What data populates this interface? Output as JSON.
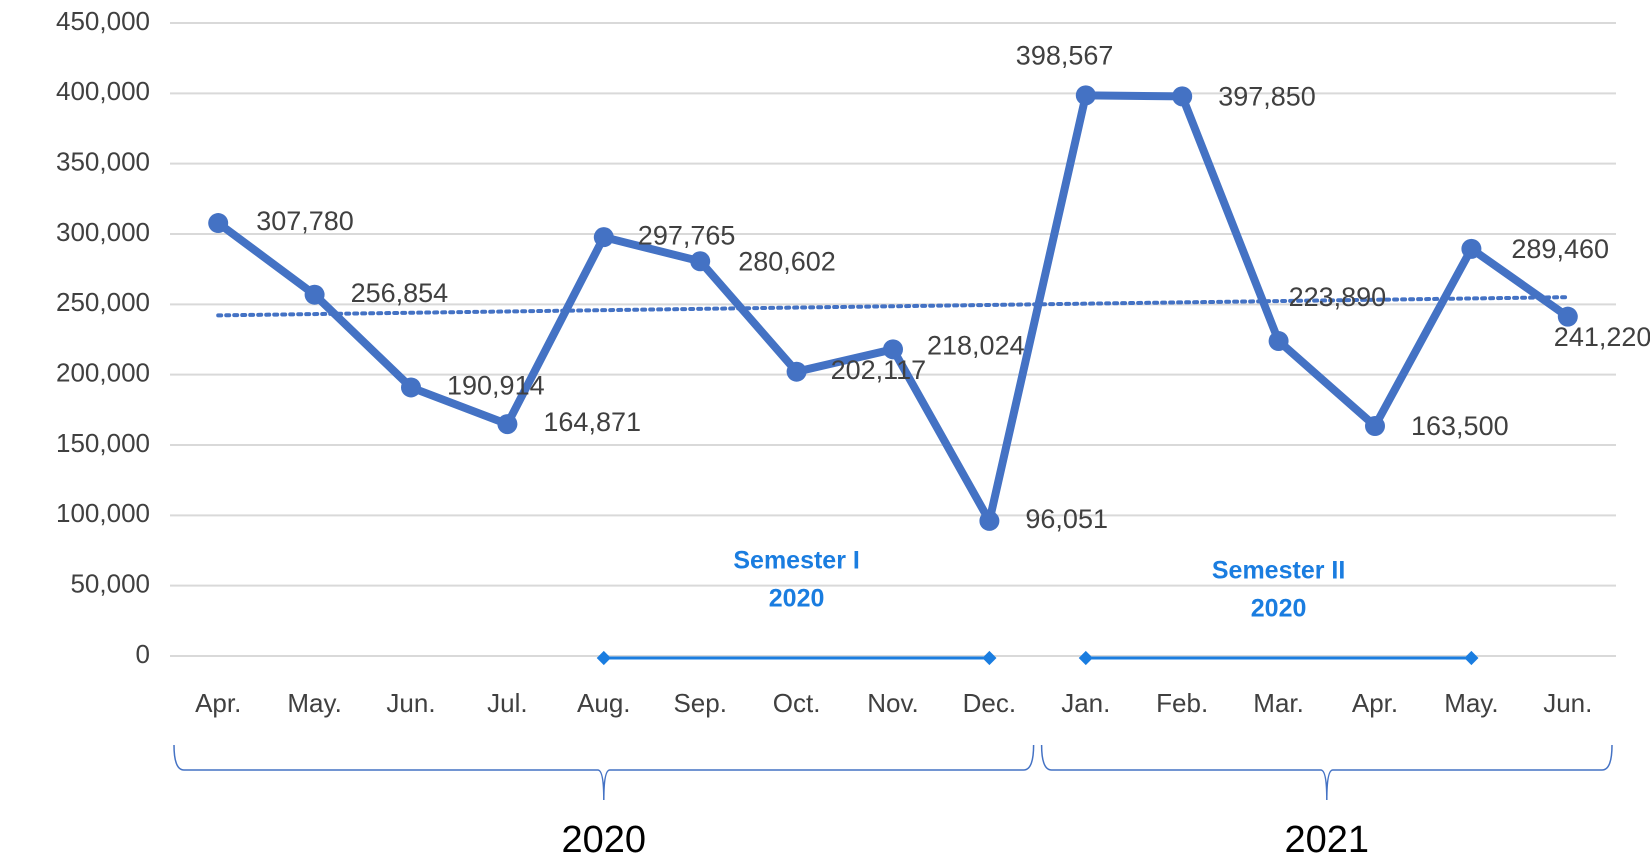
{
  "chart_data": {
    "type": "line",
    "categories": [
      "Apr.",
      "May.",
      "Jun.",
      "Jul.",
      "Aug.",
      "Sep.",
      "Oct.",
      "Nov.",
      "Dec.",
      "Jan.",
      "Feb.",
      "Mar.",
      "Apr.",
      "May.",
      "Jun."
    ],
    "series": [
      {
        "color": "#4472c4",
        "values": [
          307780,
          256854,
          190914,
          164871,
          297765,
          280602,
          202117,
          218024,
          96051,
          398567,
          397850,
          223890,
          163500,
          289460,
          241220
        ],
        "value_labels": [
          "307,780",
          "256,854",
          "190,914",
          "164,871",
          "297,765",
          "280,602",
          "202,117",
          "218,024",
          "96,051",
          "398,567",
          "397,850",
          "223,890",
          "163,500",
          "289,460",
          "241,220"
        ],
        "trendline": "linear"
      }
    ],
    "ylim": [
      0,
      450000
    ],
    "yticks": [
      0,
      {
        "value": 50000,
        "label": "50,000"
      },
      {
        "value": 100000,
        "label": "100,000"
      },
      {
        "value": 150000,
        "label": "150,000"
      },
      {
        "value": 200000,
        "label": "200,000"
      },
      {
        "value": 250000,
        "label": "250,000"
      },
      {
        "value": 300000,
        "label": "300,000"
      },
      {
        "value": 350000,
        "label": "350,000"
      },
      {
        "value": 400000,
        "label": "400,000"
      },
      {
        "value": 450000,
        "label": "450,000"
      }
    ],
    "grid": true,
    "annotations": [
      {
        "lines": [
          "Semester I",
          "2020"
        ]
      },
      {
        "lines": [
          "Semester II",
          "2020"
        ]
      }
    ],
    "year_groups": [
      "2020",
      "2021"
    ]
  }
}
